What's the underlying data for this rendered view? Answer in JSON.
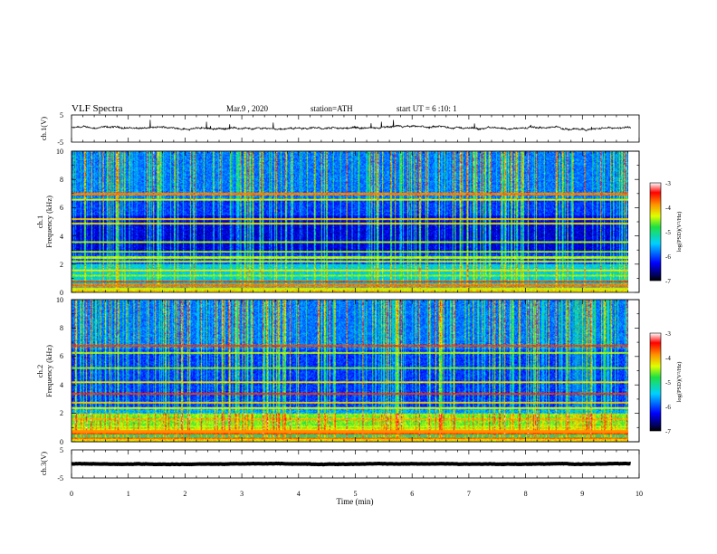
{
  "header": {
    "title": "VLF Spectra",
    "date": "Mar.9 , 2020",
    "station": "station=ATH",
    "start": "start UT = 6 :10: 1"
  },
  "chart_data": [
    {
      "type": "line",
      "name": "ch1-voltage",
      "ylabel": "ch.1(V)",
      "ylim": [
        -5,
        5
      ],
      "yticks": [
        "5",
        "-5"
      ],
      "xlim": [
        0,
        10
      ],
      "baseline": 0.2,
      "noise": 0.45,
      "end_time": 9.85,
      "color": "#000000"
    },
    {
      "type": "heatmap",
      "name": "ch1-spectrogram",
      "ylabel": "ch.1\nFrequency (kHz)",
      "ylabel_lines": [
        "ch.1",
        "Frequency (kHz)"
      ],
      "ylim": [
        0,
        10
      ],
      "yticks": [
        "0",
        "2",
        "4",
        "6",
        "8",
        "10"
      ],
      "xlim": [
        0,
        10
      ],
      "end_time": 9.85,
      "colorbar": {
        "label": "log(PSD)(V²/Hz)",
        "range": [
          -7,
          -3
        ],
        "ticks": [
          "-3",
          "-4",
          "-5",
          "-6",
          "-7"
        ]
      }
    },
    {
      "type": "heatmap",
      "name": "ch2-spectrogram",
      "ylabel": "ch.2\nFrequency (kHz)",
      "ylabel_lines": [
        "ch.2",
        "Frequency (kHz)"
      ],
      "ylim": [
        0,
        10
      ],
      "yticks": [
        "0",
        "2",
        "4",
        "6",
        "8",
        "10"
      ],
      "xlim": [
        0,
        10
      ],
      "end_time": 9.85,
      "colorbar": {
        "label": "log(PSD)(V²/Hz)",
        "range": [
          -7,
          -3
        ],
        "ticks": [
          "-3",
          "-4",
          "-5",
          "-6",
          "-7"
        ]
      }
    },
    {
      "type": "line",
      "name": "ch3-voltage",
      "ylabel": "ch.3(V)",
      "ylim": [
        -5,
        5
      ],
      "yticks": [
        "5",
        "-5"
      ],
      "xlim": [
        0,
        10
      ],
      "xlabel": "Time (min)",
      "xticks": [
        "0",
        "1",
        "2",
        "3",
        "4",
        "5",
        "6",
        "7",
        "8",
        "9",
        "10"
      ],
      "baseline": 0,
      "noise": 0.12,
      "end_time": 9.85,
      "color": "#000000"
    }
  ]
}
